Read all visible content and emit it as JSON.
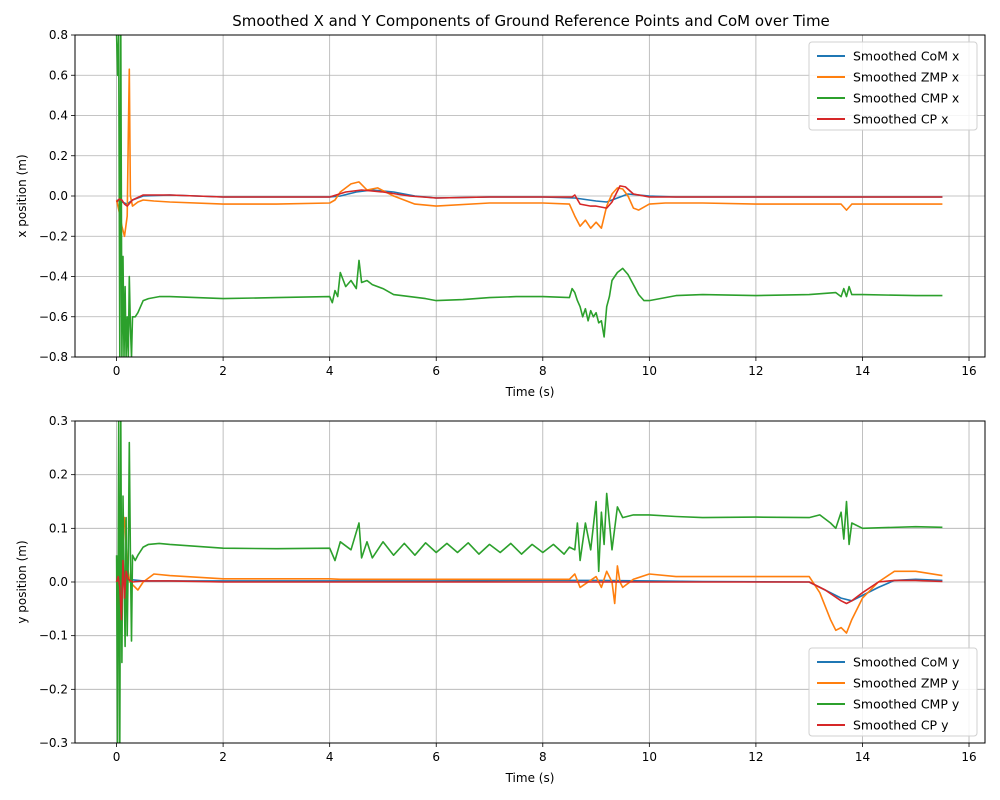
{
  "title": "Smoothed X and Y Components of Ground Reference Points and CoM over Time",
  "chart_data": [
    {
      "type": "line",
      "xlabel": "Time (s)",
      "ylabel": "x position (m)",
      "xlim": [
        -0.78,
        16.3
      ],
      "ylim": [
        -0.8,
        0.8
      ],
      "xticks": [
        0,
        2,
        4,
        6,
        8,
        10,
        12,
        14,
        16
      ],
      "yticks": [
        -0.8,
        -0.6,
        -0.4,
        -0.2,
        0.0,
        0.2,
        0.4,
        0.6,
        0.8
      ],
      "xtick_labels": [
        "0",
        "2",
        "4",
        "6",
        "8",
        "10",
        "12",
        "14",
        "16"
      ],
      "ytick_labels": [
        "−0.8",
        "−0.6",
        "−0.4",
        "−0.2",
        "0.0",
        "0.2",
        "0.4",
        "0.6",
        "0.8"
      ],
      "grid": true,
      "legend_position": "top-right",
      "series": [
        {
          "name": "Smoothed CoM x",
          "color": "#1f77b4",
          "x": [
            0,
            0.1,
            0.2,
            0.3,
            0.5,
            1.0,
            2.0,
            3.0,
            4.0,
            4.2,
            4.5,
            4.8,
            5.2,
            5.6,
            6.0,
            7.0,
            8.0,
            8.6,
            9.0,
            9.2,
            9.4,
            9.6,
            10.0,
            10.5,
            12.0,
            13.5,
            15.5
          ],
          "values": [
            -0.02,
            -0.03,
            -0.04,
            -0.02,
            0.0,
            0.005,
            -0.005,
            -0.005,
            -0.005,
            0.0,
            0.02,
            0.03,
            0.02,
            0.0,
            -0.01,
            -0.005,
            -0.005,
            -0.01,
            -0.025,
            -0.03,
            -0.01,
            0.01,
            0.0,
            -0.005,
            -0.005,
            -0.005,
            -0.005
          ]
        },
        {
          "name": "Smoothed ZMP x",
          "color": "#ff7f0e",
          "x": [
            0,
            0.05,
            0.1,
            0.15,
            0.2,
            0.22,
            0.24,
            0.26,
            0.3,
            0.4,
            0.5,
            0.7,
            1.0,
            2.0,
            3.0,
            4.0,
            4.1,
            4.2,
            4.4,
            4.55,
            4.7,
            4.9,
            5.2,
            5.6,
            6.0,
            7.0,
            8.0,
            8.5,
            8.6,
            8.7,
            8.8,
            8.9,
            9.0,
            9.1,
            9.2,
            9.3,
            9.4,
            9.5,
            9.6,
            9.7,
            9.8,
            9.9,
            10.0,
            10.3,
            11.0,
            12.0,
            13.0,
            13.6,
            13.7,
            13.8,
            14.0,
            15.0,
            15.5
          ],
          "values": [
            -0.02,
            -0.08,
            -0.15,
            -0.2,
            -0.1,
            0.3,
            0.63,
            0.0,
            -0.05,
            -0.03,
            -0.02,
            -0.025,
            -0.03,
            -0.04,
            -0.04,
            -0.035,
            -0.02,
            0.02,
            0.06,
            0.07,
            0.03,
            0.04,
            0.0,
            -0.04,
            -0.05,
            -0.035,
            -0.035,
            -0.04,
            -0.1,
            -0.15,
            -0.12,
            -0.16,
            -0.13,
            -0.16,
            -0.05,
            0.01,
            0.04,
            0.035,
            0.0,
            -0.06,
            -0.07,
            -0.055,
            -0.04,
            -0.035,
            -0.035,
            -0.04,
            -0.04,
            -0.04,
            -0.07,
            -0.04,
            -0.04,
            -0.04,
            -0.04
          ]
        },
        {
          "name": "Smoothed CMP x",
          "color": "#2ca02c",
          "x": [
            0.0,
            0.02,
            0.04,
            0.06,
            0.08,
            0.1,
            0.12,
            0.14,
            0.16,
            0.18,
            0.2,
            0.22,
            0.24,
            0.26,
            0.28,
            0.3,
            0.35,
            0.4,
            0.5,
            0.6,
            0.8,
            1.0,
            2.0,
            3.0,
            4.0,
            4.05,
            4.1,
            4.15,
            4.2,
            4.3,
            4.4,
            4.5,
            4.55,
            4.6,
            4.7,
            4.8,
            5.0,
            5.2,
            5.5,
            5.8,
            6.0,
            6.5,
            7.0,
            7.5,
            8.0,
            8.5,
            8.55,
            8.6,
            8.65,
            8.7,
            8.75,
            8.8,
            8.85,
            8.9,
            8.95,
            9.0,
            9.05,
            9.1,
            9.15,
            9.2,
            9.25,
            9.3,
            9.4,
            9.5,
            9.6,
            9.7,
            9.8,
            9.9,
            10.0,
            10.2,
            10.5,
            11.0,
            12.0,
            13.0,
            13.5,
            13.6,
            13.65,
            13.7,
            13.75,
            13.8,
            14.0,
            15.0,
            15.5
          ],
          "values": [
            0.8,
            0.6,
            0.8,
            -0.8,
            0.8,
            -0.8,
            -0.3,
            -0.8,
            -0.45,
            -0.8,
            -0.6,
            -0.8,
            -0.4,
            -0.65,
            -0.8,
            -0.6,
            -0.6,
            -0.58,
            -0.52,
            -0.51,
            -0.5,
            -0.5,
            -0.51,
            -0.505,
            -0.5,
            -0.53,
            -0.47,
            -0.5,
            -0.38,
            -0.45,
            -0.42,
            -0.46,
            -0.32,
            -0.43,
            -0.42,
            -0.44,
            -0.46,
            -0.49,
            -0.5,
            -0.51,
            -0.52,
            -0.515,
            -0.505,
            -0.5,
            -0.5,
            -0.505,
            -0.46,
            -0.48,
            -0.52,
            -0.55,
            -0.6,
            -0.56,
            -0.62,
            -0.57,
            -0.6,
            -0.58,
            -0.63,
            -0.62,
            -0.7,
            -0.55,
            -0.5,
            -0.42,
            -0.38,
            -0.36,
            -0.39,
            -0.44,
            -0.49,
            -0.52,
            -0.52,
            -0.51,
            -0.495,
            -0.49,
            -0.495,
            -0.49,
            -0.48,
            -0.5,
            -0.46,
            -0.5,
            -0.45,
            -0.49,
            -0.49,
            -0.495,
            -0.495
          ]
        },
        {
          "name": "Smoothed CP x",
          "color": "#d62728",
          "x": [
            0,
            0.05,
            0.1,
            0.15,
            0.2,
            0.3,
            0.5,
            1.0,
            2.0,
            3.0,
            4.0,
            4.3,
            4.6,
            5.0,
            5.5,
            6.0,
            7.0,
            8.0,
            8.55,
            8.6,
            8.7,
            8.9,
            9.0,
            9.2,
            9.3,
            9.45,
            9.55,
            9.7,
            10.0,
            11.0,
            12.0,
            13.0,
            13.7,
            14.0,
            15.5
          ],
          "values": [
            -0.03,
            -0.015,
            -0.02,
            -0.04,
            -0.05,
            -0.02,
            0.005,
            0.005,
            -0.005,
            -0.005,
            -0.005,
            0.02,
            0.03,
            0.02,
            0.0,
            -0.01,
            -0.005,
            -0.005,
            -0.005,
            0.005,
            -0.04,
            -0.05,
            -0.05,
            -0.06,
            -0.03,
            0.05,
            0.045,
            0.01,
            -0.005,
            -0.005,
            -0.005,
            -0.005,
            -0.005,
            -0.005,
            -0.005
          ]
        }
      ]
    },
    {
      "type": "line",
      "xlabel": "Time (s)",
      "ylabel": "y position (m)",
      "xlim": [
        -0.78,
        16.3
      ],
      "ylim": [
        -0.3,
        0.3
      ],
      "xticks": [
        0,
        2,
        4,
        6,
        8,
        10,
        12,
        14,
        16
      ],
      "yticks": [
        -0.3,
        -0.2,
        -0.1,
        0.0,
        0.1,
        0.2,
        0.3
      ],
      "xtick_labels": [
        "0",
        "2",
        "4",
        "6",
        "8",
        "10",
        "12",
        "14",
        "16"
      ],
      "ytick_labels": [
        "−0.3",
        "−0.2",
        "−0.1",
        "0.0",
        "0.1",
        "0.2",
        "0.3"
      ],
      "grid": true,
      "legend_position": "bottom-right",
      "series": [
        {
          "name": "Smoothed CoM y",
          "color": "#1f77b4",
          "x": [
            0,
            0.2,
            0.5,
            1.0,
            2.0,
            4.0,
            6.0,
            8.0,
            9.0,
            10.0,
            11.0,
            13.0,
            13.2,
            13.4,
            13.6,
            13.8,
            14.0,
            14.3,
            14.6,
            15.0,
            15.5
          ],
          "values": [
            0.0,
            0.005,
            0.002,
            0.002,
            0.002,
            0.002,
            0.002,
            0.003,
            0.003,
            0.002,
            0.001,
            0.0,
            -0.01,
            -0.02,
            -0.03,
            -0.035,
            -0.025,
            -0.01,
            0.003,
            0.005,
            0.003
          ]
        },
        {
          "name": "Smoothed ZMP y",
          "color": "#ff7f0e",
          "x": [
            0,
            0.05,
            0.1,
            0.15,
            0.2,
            0.25,
            0.3,
            0.4,
            0.5,
            0.7,
            1.0,
            2.0,
            3.0,
            4.0,
            4.2,
            4.5,
            5.0,
            6.0,
            7.0,
            8.0,
            8.5,
            8.6,
            8.7,
            9.0,
            9.1,
            9.2,
            9.3,
            9.35,
            9.4,
            9.45,
            9.5,
            9.7,
            10.0,
            10.5,
            11.0,
            12.0,
            13.0,
            13.2,
            13.4,
            13.5,
            13.6,
            13.7,
            13.8,
            14.0,
            14.3,
            14.6,
            15.0,
            15.5
          ],
          "values": [
            0.0,
            0.04,
            0.08,
            0.12,
            0.03,
            0.0,
            -0.005,
            -0.015,
            0.0,
            0.015,
            0.012,
            0.006,
            0.006,
            0.006,
            0.005,
            0.005,
            0.005,
            0.005,
            0.005,
            0.005,
            0.005,
            0.015,
            -0.01,
            0.01,
            -0.01,
            0.02,
            0.0,
            -0.04,
            0.03,
            0.0,
            -0.01,
            0.005,
            0.015,
            0.01,
            0.01,
            0.01,
            0.01,
            -0.02,
            -0.07,
            -0.09,
            -0.085,
            -0.095,
            -0.07,
            -0.03,
            0.0,
            0.02,
            0.02,
            0.012
          ]
        },
        {
          "name": "Smoothed CMP y",
          "color": "#2ca02c",
          "x": [
            0.0,
            0.02,
            0.04,
            0.06,
            0.08,
            0.1,
            0.12,
            0.14,
            0.16,
            0.18,
            0.2,
            0.22,
            0.24,
            0.26,
            0.28,
            0.3,
            0.35,
            0.4,
            0.5,
            0.6,
            0.8,
            1.0,
            2.0,
            3.0,
            4.0,
            4.1,
            4.2,
            4.4,
            4.55,
            4.6,
            4.7,
            4.8,
            5.0,
            5.2,
            5.4,
            5.6,
            5.8,
            6.0,
            6.2,
            6.4,
            6.6,
            6.8,
            7.0,
            7.2,
            7.4,
            7.6,
            7.8,
            8.0,
            8.2,
            8.4,
            8.5,
            8.6,
            8.65,
            8.7,
            8.8,
            8.9,
            9.0,
            9.05,
            9.1,
            9.15,
            9.2,
            9.3,
            9.4,
            9.5,
            9.7,
            10.0,
            10.5,
            11.0,
            12.0,
            13.0,
            13.2,
            13.4,
            13.5,
            13.6,
            13.65,
            13.7,
            13.75,
            13.8,
            14.0,
            15.0,
            15.5
          ],
          "values": [
            0.05,
            -0.3,
            0.3,
            -0.3,
            0.3,
            -0.15,
            0.16,
            0.03,
            -0.12,
            0.12,
            -0.1,
            0.05,
            0.26,
            0.05,
            -0.11,
            0.05,
            0.04,
            0.05,
            0.065,
            0.07,
            0.072,
            0.07,
            0.063,
            0.062,
            0.063,
            0.04,
            0.075,
            0.06,
            0.11,
            0.045,
            0.075,
            0.045,
            0.075,
            0.05,
            0.072,
            0.05,
            0.073,
            0.055,
            0.072,
            0.055,
            0.073,
            0.052,
            0.07,
            0.055,
            0.072,
            0.052,
            0.07,
            0.055,
            0.07,
            0.052,
            0.065,
            0.06,
            0.11,
            0.04,
            0.11,
            0.06,
            0.15,
            0.02,
            0.13,
            0.07,
            0.165,
            0.06,
            0.14,
            0.12,
            0.125,
            0.125,
            0.122,
            0.12,
            0.121,
            0.12,
            0.125,
            0.11,
            0.1,
            0.13,
            0.08,
            0.15,
            0.07,
            0.11,
            0.1,
            0.103,
            0.102
          ]
        },
        {
          "name": "Smoothed CP y",
          "color": "#d62728",
          "x": [
            0,
            0.03,
            0.06,
            0.09,
            0.12,
            0.15,
            0.18,
            0.22,
            0.3,
            0.5,
            1.0,
            2.0,
            4.0,
            6.0,
            8.0,
            9.0,
            10.0,
            11.0,
            13.0,
            13.3,
            13.6,
            13.7,
            13.8,
            14.0,
            14.3,
            14.6,
            15.0,
            15.5
          ],
          "values": [
            0.0,
            0.01,
            -0.01,
            -0.07,
            0.04,
            -0.03,
            0.02,
            0.005,
            0.0,
            0.002,
            0.002,
            0.0,
            0.0,
            0.0,
            0.0,
            0.0,
            0.0,
            0.0,
            0.0,
            -0.015,
            -0.035,
            -0.04,
            -0.035,
            -0.02,
            0.0,
            0.003,
            0.003,
            0.001
          ]
        }
      ]
    }
  ]
}
